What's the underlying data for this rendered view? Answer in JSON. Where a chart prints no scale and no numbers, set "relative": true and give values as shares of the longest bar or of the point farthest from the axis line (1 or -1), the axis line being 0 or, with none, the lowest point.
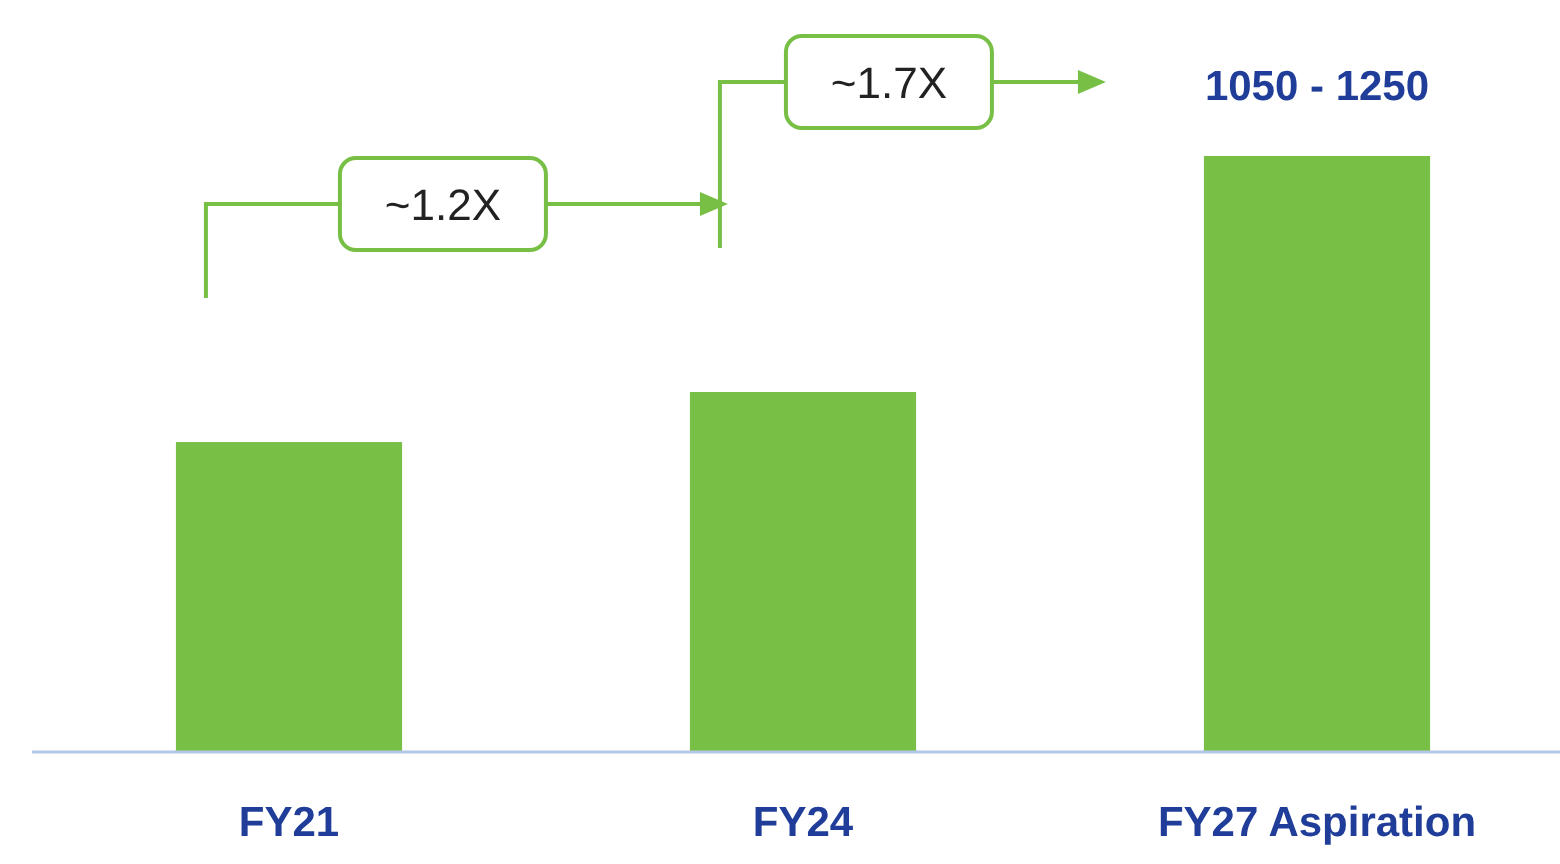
{
  "chart_data": {
    "type": "bar",
    "relative": true,
    "categories": [
      "FY21",
      "FY24",
      "FY27 Aspiration"
    ],
    "values": [
      0.52,
      0.604,
      1
    ],
    "color": "#77bf45",
    "annotations": [
      "~1.2X",
      "~1.7X",
      "1050 - 1250"
    ]
  }
}
